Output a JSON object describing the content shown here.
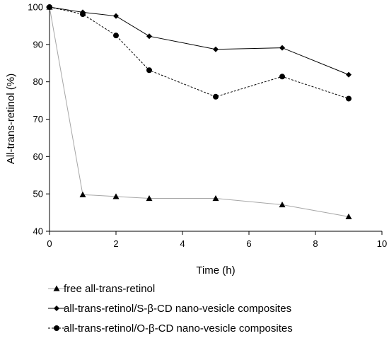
{
  "chart_data": {
    "type": "line",
    "xlabel": "Time (h)",
    "ylabel": "All-trans-retinol (%)",
    "xlim": [
      0,
      10
    ],
    "ylim": [
      40,
      100
    ],
    "xticks": [
      "0",
      "2",
      "4",
      "6",
      "8",
      "10"
    ],
    "yticks": [
      "40",
      "50",
      "60",
      "70",
      "80",
      "90",
      "100"
    ],
    "grid": false,
    "legend_position": "bottom",
    "series": [
      {
        "name": "free all-trans-retinol",
        "marker": "triangle",
        "line": "solid",
        "color": "#a6a6a6",
        "x": [
          0,
          1,
          2,
          3,
          5,
          7,
          9
        ],
        "y": [
          100,
          49.8,
          49.3,
          48.8,
          48.8,
          47.1,
          43.9
        ]
      },
      {
        "name": "all-trans-retinol/S-β-CD nano-vesicle composites",
        "marker": "diamond",
        "line": "solid",
        "color": "#000000",
        "x": [
          0,
          1,
          2,
          3,
          5,
          7,
          9
        ],
        "y": [
          100,
          98.6,
          97.6,
          92.2,
          88.7,
          89.1,
          81.9
        ]
      },
      {
        "name": "all-trans-retinol/O-β-CD nano-vesicle composites",
        "marker": "circle",
        "line": "dashed",
        "color": "#000000",
        "x": [
          0,
          1,
          2,
          3,
          5,
          7,
          9
        ],
        "y": [
          100,
          98.1,
          92.4,
          83.1,
          76.0,
          81.4,
          75.5
        ]
      }
    ]
  }
}
